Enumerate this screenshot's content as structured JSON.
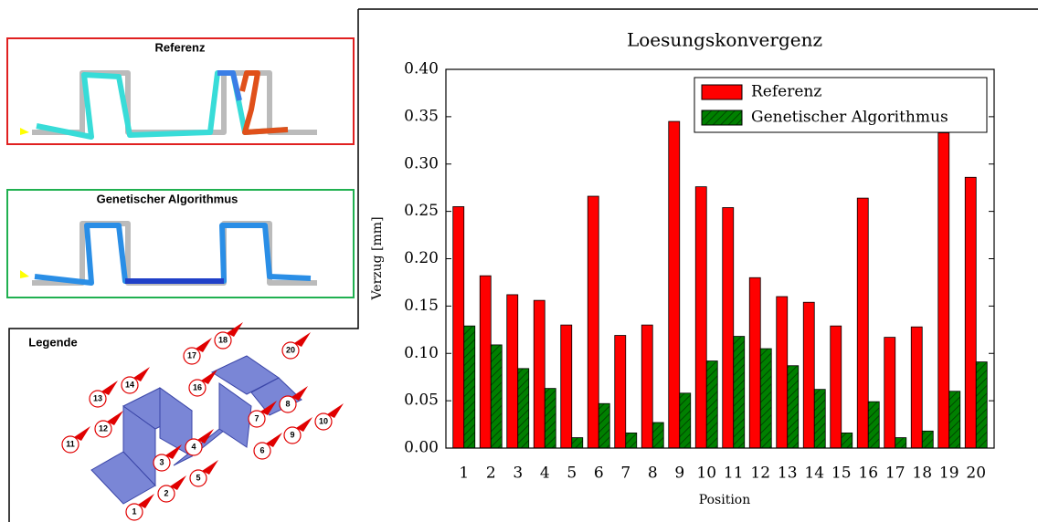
{
  "panels": {
    "reference": {
      "title": "Referenz"
    },
    "genetic": {
      "title": "Genetischer Algorithmus"
    },
    "legend": {
      "title": "Legende",
      "markers": [
        "1",
        "2",
        "3",
        "4",
        "5",
        "6",
        "7",
        "8",
        "9",
        "10",
        "11",
        "12",
        "13",
        "14",
        "16",
        "17",
        "18",
        "20"
      ]
    }
  },
  "chart_data": {
    "type": "bar",
    "title": "Loesungskonvergenz",
    "x_label": "Position",
    "y_label": "Verzug [mm]",
    "categories": [
      "1",
      "2",
      "3",
      "4",
      "5",
      "6",
      "7",
      "8",
      "9",
      "10",
      "11",
      "12",
      "13",
      "14",
      "15",
      "16",
      "17",
      "18",
      "19",
      "20"
    ],
    "series": [
      {
        "name": "Referenz",
        "color": "#ff0000",
        "values": [
          0.255,
          0.182,
          0.162,
          0.156,
          0.13,
          0.266,
          0.119,
          0.13,
          0.345,
          0.276,
          0.254,
          0.18,
          0.16,
          0.154,
          0.129,
          0.264,
          0.117,
          0.128,
          0.333,
          0.286
        ]
      },
      {
        "name": "Genetischer Algorithmus",
        "color": "#008000",
        "values": [
          0.129,
          0.109,
          0.084,
          0.063,
          0.011,
          0.047,
          0.016,
          0.027,
          0.058,
          0.092,
          0.118,
          0.105,
          0.087,
          0.062,
          0.016,
          0.049,
          0.011,
          0.018,
          0.06,
          0.091
        ]
      }
    ],
    "ylim": [
      0,
      0.4
    ],
    "yticks": [
      {
        "value": 0,
        "label": "0.00"
      },
      0.05,
      {
        "value": 0.1,
        "label": "0.10"
      },
      0.15,
      {
        "value": 0.2,
        "label": "0.20"
      },
      0.25,
      {
        "value": 0.3,
        "label": "0.30"
      },
      0.35,
      {
        "value": 0.4,
        "label": "0.40"
      }
    ],
    "legend": "upper right"
  }
}
